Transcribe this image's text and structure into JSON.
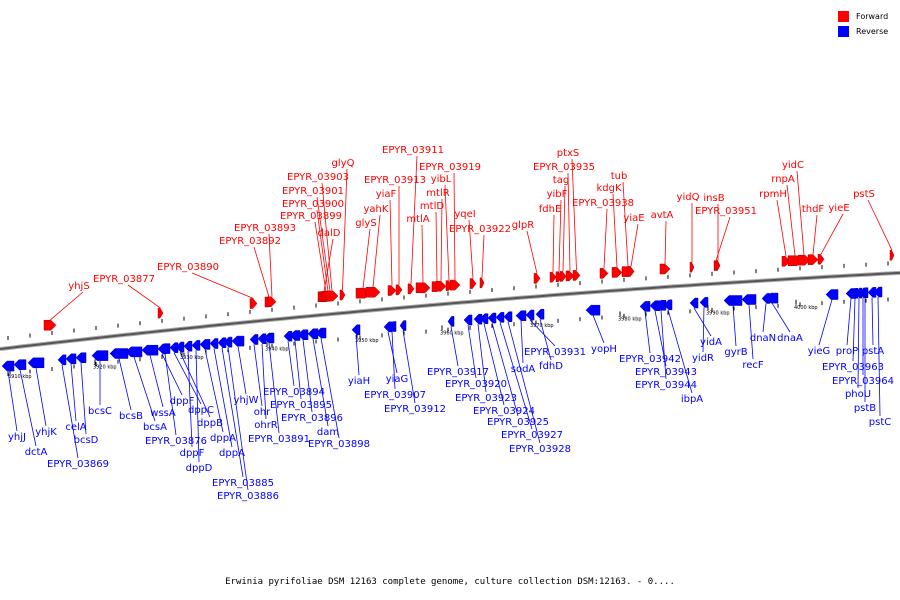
{
  "colors": {
    "forward": "#ff0000",
    "reverse": "#0000ff",
    "backbone": "#777777"
  },
  "legend": {
    "forward_label": "Forward",
    "reverse_label": "Reverse"
  },
  "caption": "Erwinia pyrifoliae DSM 12163 complete genome, culture collection DSM:12163. - 0....",
  "ticks": [
    "3910 kbp",
    "3920 kbp",
    "3930 kbp",
    "3940 kbp",
    "3950 kbp",
    "3960 kbp",
    "3970 kbp",
    "3980 kbp",
    "3990 kbp",
    "4000 kbp"
  ],
  "forward_genes": [
    "yhjS",
    "EPYR_03877",
    "EPYR_03890",
    "EPYR_03892",
    "EPYR_03893",
    "dalD",
    "EPYR_03899",
    "EPYR_03900",
    "EPYR_03901",
    "EPYR_03903",
    "glyQ",
    "glyS",
    "yahK",
    "yiaF",
    "EPYR_03913",
    "EPYR_03911",
    "mtlA",
    "mtlD",
    "mtlR",
    "yibL",
    "EPYR_03919",
    "yqeI",
    "EPYR_03922",
    "glpR",
    "fdhE",
    "yibF",
    "tag",
    "EPYR_03935",
    "ptxS",
    "EPYR_03938",
    "kdgK",
    "tub",
    "yiaE",
    "avtA",
    "yidQ",
    "EPYR_03951",
    "insB",
    "rpmH",
    "rnpA",
    "yidC",
    "thdF",
    "yieE",
    "pstS"
  ],
  "reverse_genes": [
    "yhjJ",
    "dctA",
    "yhjK",
    "EPYR_03869",
    "celA",
    "bcsD",
    "bcsC",
    "bcsB",
    "bcsA",
    "wssA",
    "dppF",
    "EPYR_03876",
    "dppC",
    "dppB",
    "dppF",
    "dppD",
    "dppA",
    "dppA",
    "EPYR_03885",
    "EPYR_03886",
    "yhjW",
    "ohr",
    "ohrR",
    "EPYR_03891",
    "EPYR_03894",
    "EPYR_03895",
    "EPYR_03896",
    "dam",
    "EPYR_03898",
    "yiaH",
    "yiaG",
    "EPYR_03907",
    "EPYR_03912",
    "EPYR_03917",
    "EPYR_03920",
    "EPYR_03923",
    "EPYR_03924",
    "EPYR_03925",
    "EPYR_03927",
    "EPYR_03928",
    "sodA",
    "EPYR_03931",
    "fdhD",
    "yopH",
    "EPYR_03942",
    "EPYR_03943",
    "EPYR_03944",
    "ibpA",
    "yidA",
    "yidR",
    "gyrB",
    "recF",
    "dnaN",
    "dnaA",
    "yieG",
    "proP",
    "EPYR_03963",
    "EPYR_03964",
    "phoU",
    "pstB",
    "pstA",
    "pstC"
  ]
}
